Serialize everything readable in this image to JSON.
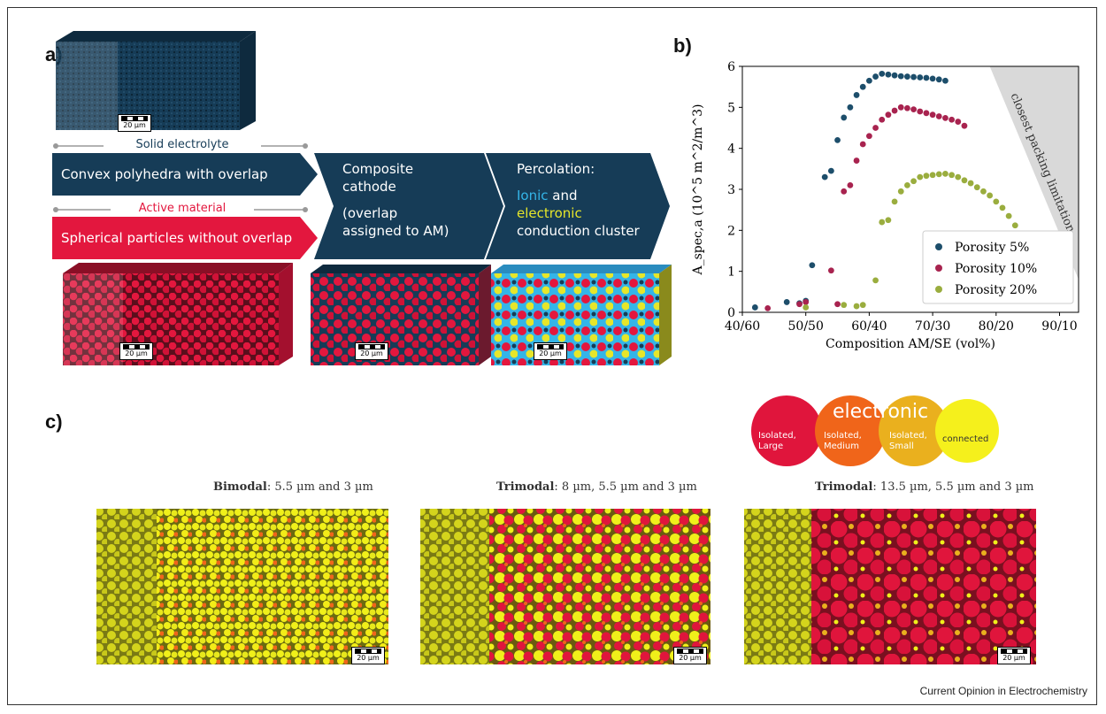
{
  "panels": {
    "a": "a)",
    "b": "b)",
    "c": "c)"
  },
  "panel_a": {
    "solid_electrolyte_label": "Solid electrolyte",
    "active_material_label": "Active material",
    "se_arrow": "Convex polyhedra with overlap",
    "am_arrow": "Spherical particles without overlap",
    "composite_line1": "Composite",
    "composite_line2": "cathode",
    "composite_line3": "(overlap",
    "composite_line4": "assigned to AM)",
    "perc_line1": "Percolation:",
    "perc_ionic": "Ionic",
    "perc_and": " and",
    "perc_electronic": "electronic",
    "perc_line3": "conduction cluster",
    "scale": "20 µm",
    "colors": {
      "navy": "#163c57",
      "red": "#e3173e",
      "ionic": "#34b5e8",
      "electronic": "#e6e62a"
    }
  },
  "chart_data": {
    "type": "scatter",
    "xlabel": "Composition AM/SE (vol%)",
    "ylabel": "A_spec,a (10^5 m^2/m^3)",
    "x_tick_labels": [
      "40/60",
      "50/50",
      "60/40",
      "70/30",
      "80/20",
      "90/10"
    ],
    "x_tick_values": [
      40,
      50,
      60,
      70,
      80,
      90
    ],
    "y_ticks": [
      0,
      1,
      2,
      3,
      4,
      5,
      6
    ],
    "xlim": [
      40,
      93
    ],
    "ylim": [
      0,
      6
    ],
    "annotation": "closest packing limitation",
    "legend_position": "bottom-right",
    "series": [
      {
        "name": "Porosity 5%",
        "color": "#1d4e6b",
        "x": [
          42,
          47,
          49,
          50,
          51,
          53,
          54,
          55,
          56,
          57,
          58,
          59,
          60,
          61,
          62,
          63,
          64,
          65,
          66,
          67,
          68,
          69,
          70,
          71,
          72
        ],
        "y": [
          0.12,
          0.25,
          0.22,
          0.28,
          1.15,
          3.3,
          3.45,
          4.2,
          4.75,
          5.0,
          5.3,
          5.5,
          5.65,
          5.75,
          5.82,
          5.8,
          5.78,
          5.76,
          5.75,
          5.74,
          5.73,
          5.72,
          5.7,
          5.68,
          5.65
        ]
      },
      {
        "name": "Porosity 10%",
        "color": "#a8234f",
        "x": [
          44,
          49,
          50,
          54,
          55,
          56,
          57,
          58,
          59,
          60,
          61,
          62,
          63,
          64,
          65,
          66,
          67,
          68,
          69,
          70,
          71,
          72,
          73,
          74,
          75
        ],
        "y": [
          0.1,
          0.2,
          0.25,
          1.02,
          0.2,
          2.95,
          3.1,
          3.7,
          4.1,
          4.3,
          4.5,
          4.7,
          4.82,
          4.92,
          5.0,
          4.98,
          4.95,
          4.9,
          4.86,
          4.82,
          4.78,
          4.74,
          4.7,
          4.65,
          4.55
        ]
      },
      {
        "name": "Porosity 20%",
        "color": "#9aad3e",
        "x": [
          50,
          56,
          58,
          59,
          61,
          62,
          63,
          64,
          65,
          66,
          67,
          68,
          69,
          70,
          71,
          72,
          73,
          74,
          75,
          76,
          77,
          78,
          79,
          80,
          81,
          82,
          83
        ],
        "y": [
          0.12,
          0.18,
          0.15,
          0.18,
          0.78,
          2.2,
          2.25,
          2.7,
          2.95,
          3.1,
          3.2,
          3.3,
          3.33,
          3.35,
          3.37,
          3.38,
          3.35,
          3.3,
          3.22,
          3.15,
          3.05,
          2.95,
          2.85,
          2.7,
          2.55,
          2.35,
          2.12
        ]
      }
    ]
  },
  "panel_c": {
    "legend_electronic": "electronic",
    "legend_large": "Isolated, Large",
    "legend_medium": "Isolated, Medium",
    "legend_small": "Isolated, Small",
    "legend_connected": "connected",
    "legend_colors": [
      "#e0153c",
      "#f0651a",
      "#eab01e",
      "#f5f01c"
    ],
    "cube1_bold": "Bimodal",
    "cube1_rest": ": 5.5 µm and 3 µm",
    "cube2_bold": "Trimodal",
    "cube2_rest": ": 8 µm, 5.5 µm and 3 µm",
    "cube3_bold": "Trimodal",
    "cube3_rest": ": 13.5 µm, 5.5 µm and 3 µm",
    "scale": "20 µm"
  },
  "footer": "Current Opinion in Electrochemistry"
}
